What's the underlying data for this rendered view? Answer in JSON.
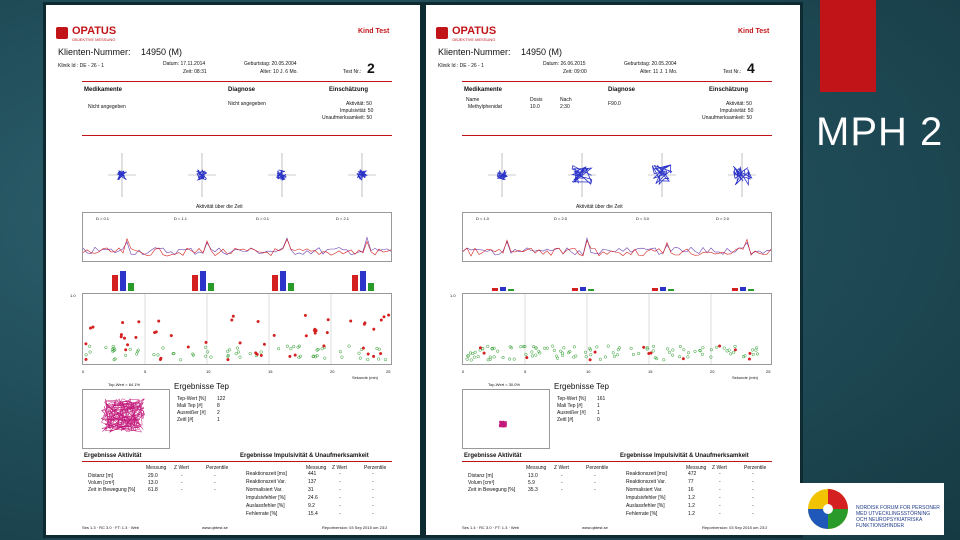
{
  "slide": {
    "title": "MPH 2"
  },
  "partner_logo": {
    "caption": "NORDISK FORUM FOR PERSONER MED UTVECKLINGSSTÖRNING OCH NEUROPSYKIATRISKA FUNKTIONSHINDER"
  },
  "colors": {
    "accent_red": "#c11418",
    "series_blue": "#2b33c8",
    "series_red": "#d42020",
    "series_green": "#2a9a2a"
  },
  "reports": [
    {
      "brand": "OPATUS",
      "brand_sub": "OBJEKTIVE MESSUNG",
      "kind_test": "Kind Test",
      "klienten_label": "Klienten-Nummer:",
      "klienten_value": "14950 (M)",
      "hdr_line1": "Klinik Id : DE - 26 - 1",
      "datum": "Datum: 17.11.2014",
      "zeit": "Zeit: 08:31",
      "geburtstag": "Geburtstag: 20.05.2004",
      "alter": "Alter: 10 J. 6 Mo.",
      "test_nr_label": "Test Nr.:",
      "test_nr": "2",
      "med_label": "Medikamente",
      "diag_label": "Diagnose",
      "einsch_label": "Einschätzung",
      "med_value": "Nicht angegeben",
      "diag_value": "Nicht angegeben",
      "name_label": "",
      "dose_label": "",
      "nach_label": "",
      "einsch_rows": [
        "Aktivität: 50",
        "Impulsivität: 50",
        "Unaufmerksamkeit: 50"
      ],
      "aktiv_title": "Aktivität über die Zeit",
      "d_values": [
        "D = 0.1",
        "D = 1.1",
        "D = 0.1",
        "D = 2.1"
      ],
      "x_ticks": [
        "0",
        "5",
        "10",
        "15",
        "20",
        "25"
      ],
      "xlabel": "Sekunde (min)",
      "y_top": "1.0",
      "top_label": "Top-Wert = 64.1%",
      "tep_title": "Ergebnisse Tep",
      "tep_rows": [
        [
          "Tep-Wert [%]",
          "122"
        ],
        [
          "Mali Tep [#]",
          "8"
        ],
        [
          "Ausreißer [#]",
          "2"
        ],
        [
          "Zeitl [#]",
          "1"
        ]
      ],
      "aktiv_res_title": "Ergebnisse Aktivität",
      "imp_res_title": "Ergebnisse Impulsivität & Unaufmerksamkeit",
      "cols": [
        "Messung",
        "Z Wert",
        "Perzentile"
      ],
      "aktiv_rows": [
        [
          "Distanz [m]",
          "29.0",
          "-",
          "-"
        ],
        [
          "Volum [cm³]",
          "13.0",
          "-",
          "-"
        ],
        [
          "Zeit in Bewegung [%]",
          "61.8",
          "-",
          "-"
        ]
      ],
      "imp_rows": [
        [
          "Reaktionszeit [ms]",
          "441",
          "-",
          "-"
        ],
        [
          "Reaktionszeit Var.",
          "137",
          "-",
          "-"
        ],
        [
          "Normalisiert Var.",
          "31",
          "-",
          "-"
        ],
        [
          "Impulsivfehler [%]",
          "24.6",
          "-",
          "-"
        ],
        [
          "Auslassfehler [%]",
          "9.2",
          "-",
          "-"
        ],
        [
          "Fehlerrate [%]",
          "15.4",
          "-",
          "-"
        ]
      ],
      "footer_left": "Ses 1.3 · RC 3.0 · FT: 1.3 · Web",
      "footer_mid": "www.qbtest.se",
      "footer_right": "Reportversion: 03 Sep 2015 um 23:2"
    },
    {
      "brand": "OPATUS",
      "brand_sub": "OBJEKTIVE MESSUNG",
      "kind_test": "Kind Test",
      "klienten_label": "Klienten-Nummer:",
      "klienten_value": "14950 (M)",
      "hdr_line1": "Klinik Id : DE - 26 - 1",
      "datum": "Datum: 26.06.2015",
      "zeit": "Zeit: 09:00",
      "geburtstag": "Geburtstag: 20.05.2004",
      "alter": "Alter: 11 J. 1 Mo.",
      "test_nr_label": "Test Nr.:",
      "test_nr": "4",
      "med_label": "Medikamente",
      "diag_label": "Diagnose",
      "einsch_label": "Einschätzung",
      "med_value": "Methylphenidat",
      "diag_value": "F90.0",
      "name_label": "Name",
      "dose_label": "Dosis",
      "nach_label": "Nach",
      "dose_value": "10.0",
      "nach_value": "2:30",
      "einsch_rows": [
        "Aktivität: 50",
        "Impulsivität: 50",
        "Unaufmerksamkeit: 50"
      ],
      "aktiv_title": "Aktivität über die Zeit",
      "d_values": [
        "D = 1.0",
        "D = 2.0",
        "D = 3.0",
        "D = 2.0"
      ],
      "x_ticks": [
        "0",
        "5",
        "10",
        "15",
        "20",
        "25"
      ],
      "xlabel": "Sekunde (min)",
      "y_top": "1.0",
      "top_label": "Top-Wert = 30.0%",
      "tep_title": "Ergebnisse Tep",
      "tep_rows": [
        [
          "Tep-Wert [%]",
          "161"
        ],
        [
          "Mali Tep [#]",
          "1"
        ],
        [
          "Ausreißer [#]",
          "1"
        ],
        [
          "Zeitl [#]",
          "0"
        ]
      ],
      "aktiv_res_title": "Ergebnisse Aktivität",
      "imp_res_title": "Ergebnisse Impulsivität & Unaufmerksamkeit",
      "cols": [
        "Messung",
        "Z Wert",
        "Perzentile"
      ],
      "aktiv_rows": [
        [
          "Distanz [m]",
          "13.0",
          "-",
          "-"
        ],
        [
          "Volum [cm³]",
          "5.9",
          "-",
          "-"
        ],
        [
          "Zeit in Bewegung [%]",
          "35.3",
          "-",
          "-"
        ]
      ],
      "imp_rows": [
        [
          "Reaktionszeit [ms]",
          "472",
          "-",
          "-"
        ],
        [
          "Reaktionszeit Var.",
          "77",
          "-",
          "-"
        ],
        [
          "Normalisiert Var.",
          "16",
          "-",
          "-"
        ],
        [
          "Impulsivfehler [%]",
          "1.2",
          "-",
          "-"
        ],
        [
          "Auslassfehler [%]",
          "1.2",
          "-",
          "-"
        ],
        [
          "Fehlerrate [%]",
          "1.2",
          "-",
          "-"
        ]
      ],
      "footer_left": "Ses 1.4 · RC 3.0 · FT: 1.3 · Web",
      "footer_mid": "www.qbtest.se",
      "footer_right": "Reportversion: 03 Sep 2015 um 23:2"
    }
  ]
}
